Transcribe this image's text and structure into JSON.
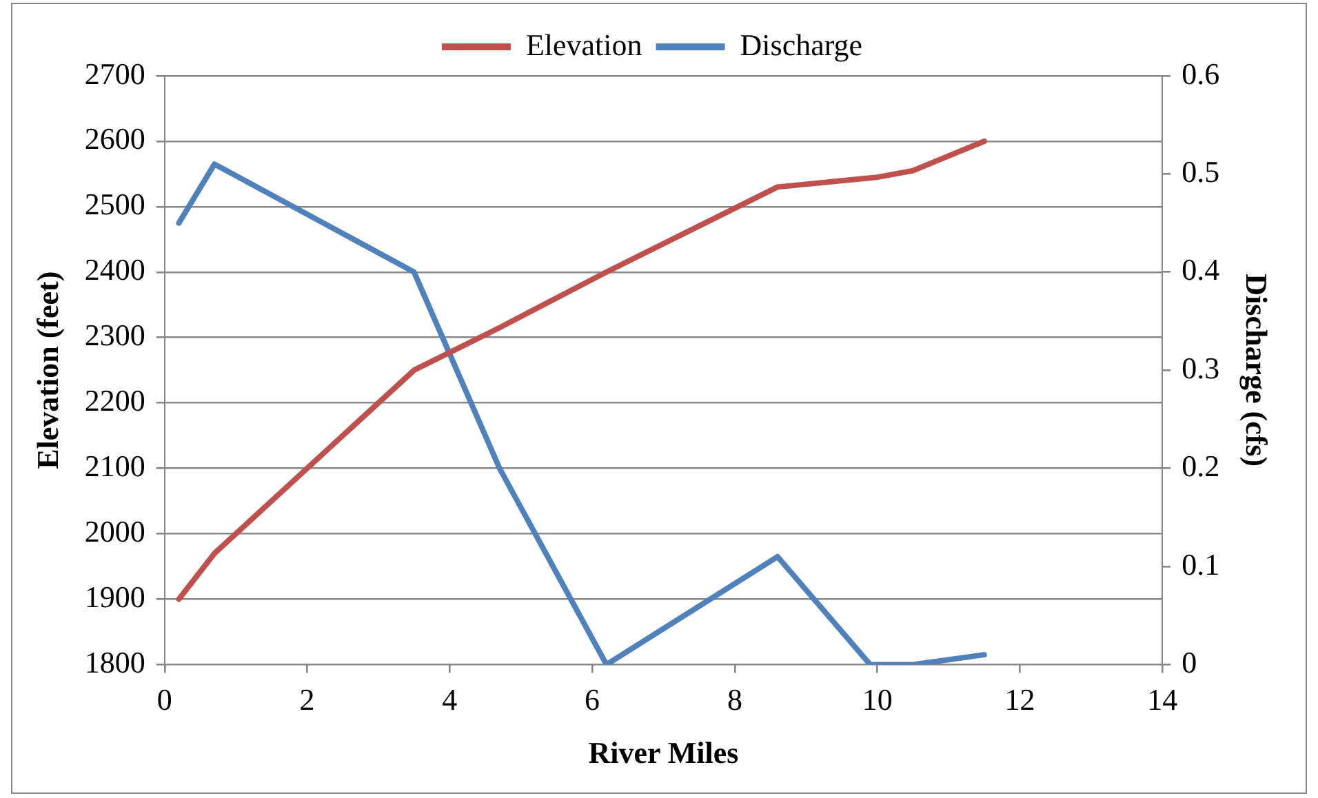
{
  "chart_data": {
    "type": "line",
    "xlabel": "River Miles",
    "ylabel": "Elevation (feet)",
    "y2label": "Discharge (cfs)",
    "xlim": [
      0,
      14
    ],
    "xticks": [
      0,
      2,
      4,
      6,
      8,
      10,
      12,
      14
    ],
    "ylim": [
      1800,
      2700
    ],
    "yticks": [
      1800,
      1900,
      2000,
      2100,
      2200,
      2300,
      2400,
      2500,
      2600,
      2700
    ],
    "y2lim": [
      0,
      0.6
    ],
    "y2ticks": [
      0,
      0.1,
      0.2,
      0.3,
      0.4,
      0.5,
      0.6
    ],
    "grid": "y",
    "legend": "top",
    "marker": "none",
    "line_style": "solid",
    "series": [
      {
        "name": "Elevation",
        "color": "#c0504d",
        "x": [
          0.2,
          0.7,
          3.5,
          4.7,
          6.2,
          8.6,
          10,
          10.5,
          11.5
        ],
        "values": [
          1900,
          1970,
          2250,
          2315,
          2400,
          2530,
          2545,
          2555,
          2600
        ]
      },
      {
        "name": "Discharge",
        "color": "#4f81bd",
        "axis": "y2",
        "x": [
          0.2,
          0.7,
          3.5,
          4.7,
          6.2,
          8.6,
          9.9,
          10.5,
          11.5
        ],
        "values": [
          0.45,
          0.51,
          0.4,
          0.2,
          0,
          0.11,
          0,
          0,
          0.01
        ]
      }
    ]
  }
}
